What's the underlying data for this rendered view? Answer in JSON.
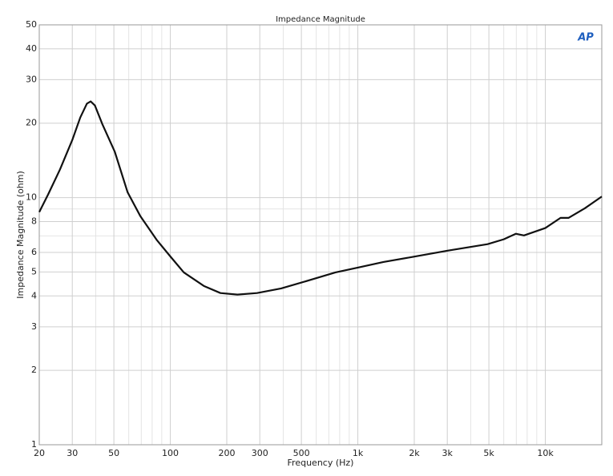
{
  "chart_data": {
    "type": "line",
    "title": "Impedance Magnitude",
    "x_label": "Frequency (Hz)",
    "y_label": "Impedance Magnitude (ohm)",
    "logo": "AP",
    "xscale": "log",
    "yscale": "log",
    "grid": true,
    "x": [
      20,
      22.3,
      25.8,
      30,
      33.1,
      35.9,
      37.6,
      39.6,
      43.3,
      50.6,
      59.2,
      69.1,
      84.9,
      100,
      118,
      151,
      185,
      228,
      290,
      390,
      551,
      760,
      1000,
      1370,
      1950,
      3010,
      4920,
      6000,
      6960,
      7690,
      10000,
      12050,
      13320,
      16240,
      20000
    ],
    "series": [
      {
        "name": "Impedance",
        "color": "#111111",
        "values": [
          8.74,
          10.3,
          13.0,
          17.1,
          21.1,
          24.0,
          24.5,
          23.6,
          19.9,
          15.3,
          10.5,
          8.43,
          6.72,
          5.78,
          4.98,
          4.39,
          4.11,
          4.05,
          4.11,
          4.29,
          4.63,
          4.98,
          5.21,
          5.49,
          5.75,
          6.1,
          6.48,
          6.78,
          7.14,
          7.03,
          7.53,
          8.28,
          8.28,
          9.05,
          10.1
        ]
      }
    ],
    "xlim": [
      20,
      20000
    ],
    "ylim": [
      1,
      50
    ],
    "xticks": [
      20,
      30,
      50,
      100,
      200,
      300,
      500,
      {
        "value": 1000,
        "label": "1k"
      },
      {
        "value": 2000,
        "label": "2k"
      },
      {
        "value": 3000,
        "label": "3k"
      },
      {
        "value": 5000,
        "label": "5k"
      },
      {
        "value": 10000,
        "label": "10k"
      }
    ],
    "x_minor_ticks": [
      40,
      60,
      70,
      80,
      90,
      400,
      600,
      700,
      800,
      900,
      4000,
      6000,
      7000,
      8000,
      9000
    ],
    "yticks": [
      1,
      2,
      3,
      4,
      5,
      6,
      8,
      10,
      20,
      30,
      40,
      50
    ],
    "y_minor_ticks": [
      7,
      9
    ]
  }
}
